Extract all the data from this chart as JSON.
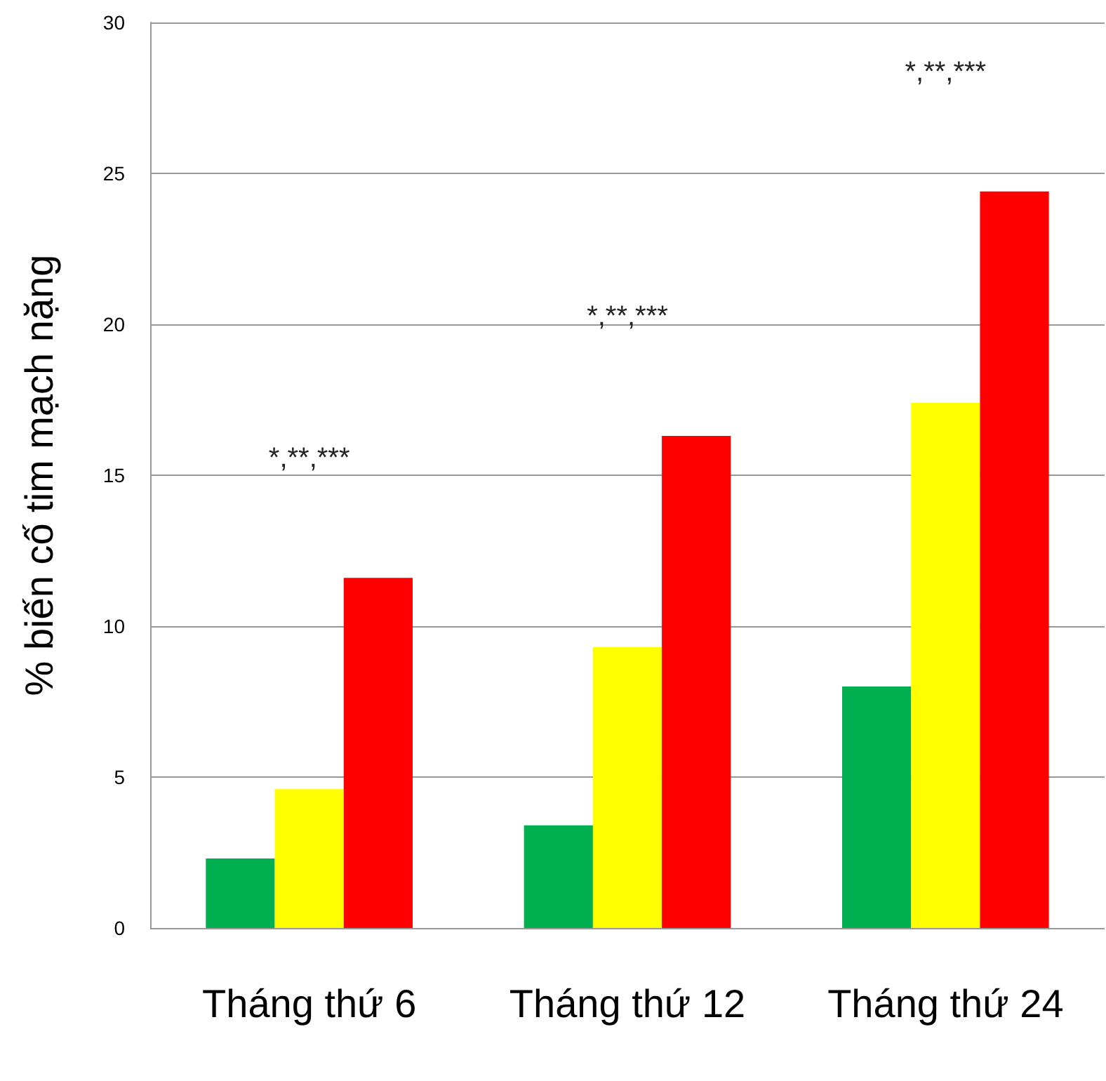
{
  "chart_data": {
    "type": "bar",
    "ylabel": "% biến cố tim mạch nặng",
    "categories": [
      "Tháng thứ 6",
      "Tháng thứ 12",
      "Tháng thứ 24"
    ],
    "series": [
      {
        "color": "#00b050",
        "values": [
          2.3,
          3.4,
          8.0
        ]
      },
      {
        "color": "#ffff00",
        "values": [
          4.6,
          9.3,
          17.4
        ]
      },
      {
        "color": "#ff0000",
        "values": [
          11.6,
          16.3,
          24.4
        ]
      }
    ],
    "ylim": [
      0,
      30
    ],
    "yticks": [
      0,
      5,
      10,
      15,
      20,
      25,
      30
    ],
    "grid": "y",
    "annotations": [
      "*,**,***",
      "*,**,***",
      "*,**,***"
    ]
  }
}
